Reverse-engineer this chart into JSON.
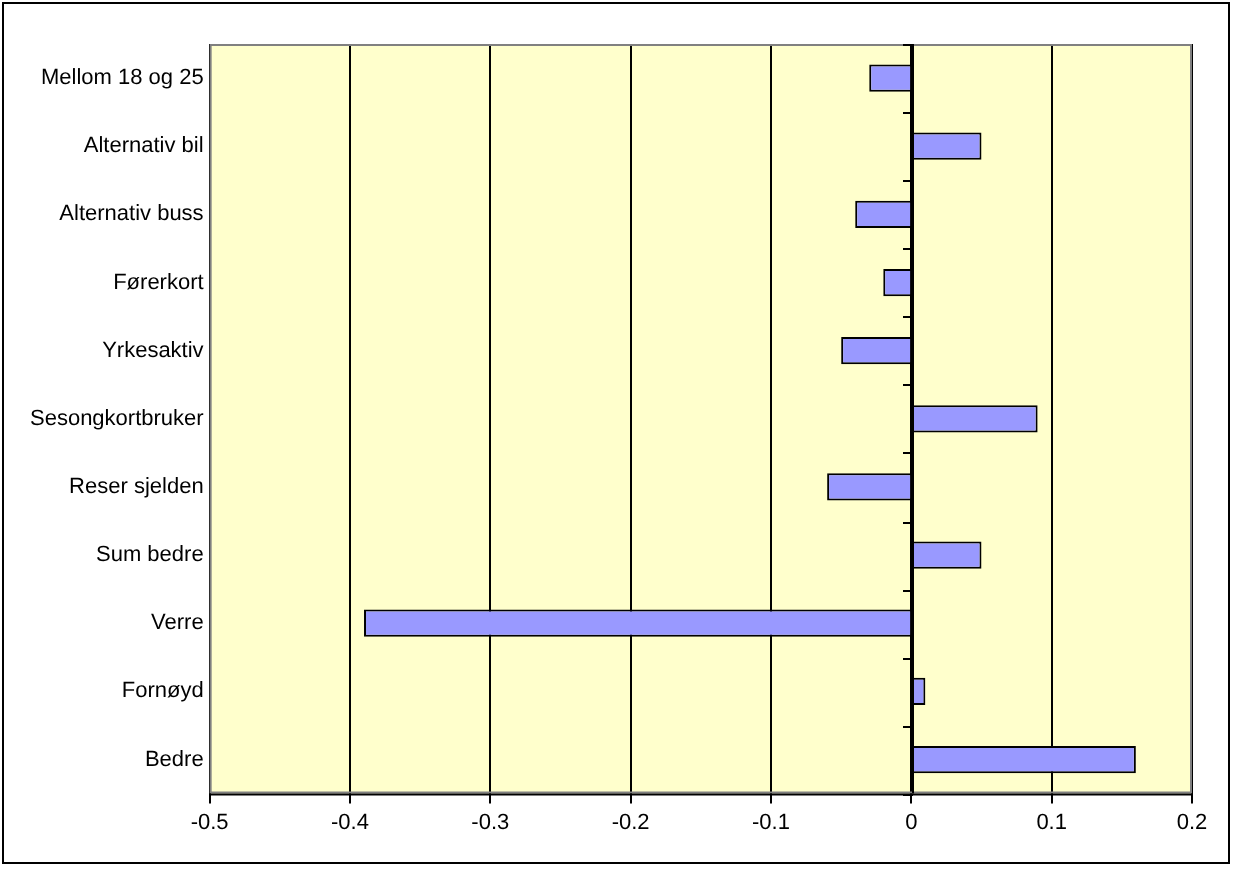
{
  "chart_data": {
    "type": "bar",
    "orientation": "horizontal",
    "categories": [
      "Mellom 18 og 25",
      "Alternativ bil",
      "Alternativ buss",
      "Førerkort",
      "Yrkesaktiv",
      "Sesongkortbruker",
      "Reser sjelden",
      "Sum bedre",
      "Verre",
      "Fornøyd",
      "Bedre"
    ],
    "values": [
      -0.03,
      0.05,
      -0.04,
      -0.02,
      -0.05,
      0.09,
      -0.06,
      0.05,
      -0.39,
      0.01,
      0.16
    ],
    "color": "#9999ff",
    "xlim": [
      -0.5,
      0.2
    ],
    "xticks": [
      -0.5,
      -0.4,
      -0.3,
      -0.2,
      -0.1,
      0,
      0.1,
      0.2
    ],
    "grid": "x",
    "legend": false
  }
}
